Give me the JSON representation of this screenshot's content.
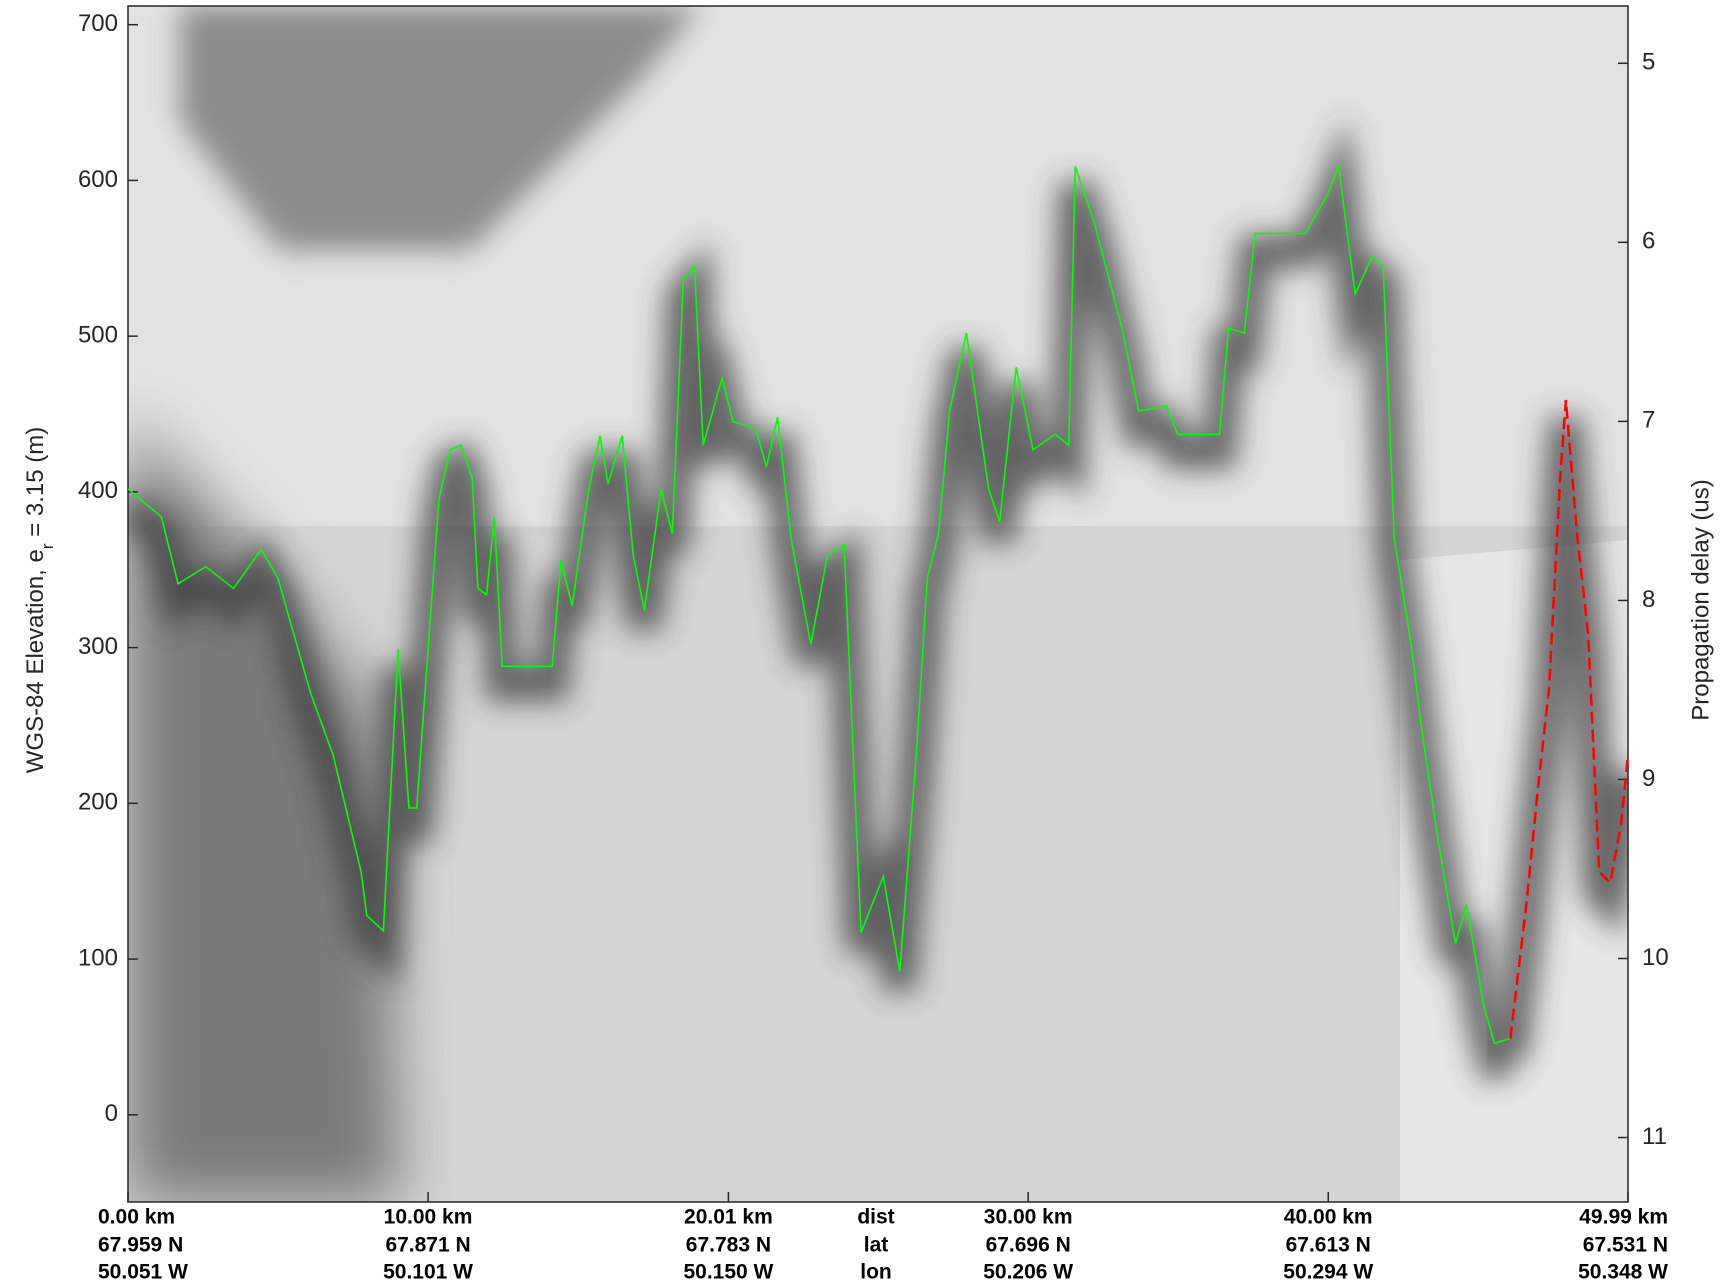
{
  "chart_data": {
    "type": "line",
    "ylabel": {
      "text": "WGS-84 Elevation, e",
      "subscript": "r",
      "suffix": " = 3.15 (m)"
    },
    "y2label": "Propagation delay (us)",
    "xlim": [
      0,
      49.99
    ],
    "ylim": [
      -56,
      712
    ],
    "yticks": [
      0,
      100,
      200,
      300,
      400,
      500,
      600,
      700
    ],
    "y2lim": [
      11.36,
      4.68
    ],
    "y2ticks": [
      5,
      6,
      7,
      8,
      9,
      10,
      11
    ],
    "xticks": [
      {
        "value": 0,
        "label": "0.00 km"
      },
      {
        "value": 10,
        "label": "10.00 km"
      },
      {
        "value": 20.01,
        "label": "20.01 km"
      },
      {
        "value": 30,
        "label": "30.00 km"
      },
      {
        "value": 40,
        "label": "40.00 km"
      },
      {
        "value": 49.99,
        "label": "49.99 km"
      }
    ],
    "lat_labels": [
      "67.959 N",
      "67.871 N",
      "67.783 N",
      "67.696 N",
      "67.613 N",
      "67.531 N"
    ],
    "lon_labels": [
      "50.051 W",
      "50.101 W",
      "50.150 W",
      "50.206 W",
      "50.294 W",
      "50.348 W"
    ],
    "row_labels": [
      "dist",
      "lat",
      "lon"
    ],
    "series": [
      {
        "color": "#00ff00",
        "linestyle": "solid",
        "x": [
          0,
          1.11,
          1.67,
          2.59,
          3.52,
          4.44,
          4.99,
          6.1,
          6.84,
          7.77,
          7.96,
          8.51,
          9.0,
          9.36,
          9.62,
          9.8,
          10.36,
          10.73,
          11.1,
          11.47,
          11.66,
          11.95,
          12.21,
          12.47,
          14.14,
          14.43,
          14.8,
          15.36,
          15.73,
          16.0,
          16.47,
          16.84,
          17.21,
          17.77,
          18.14,
          18.51,
          18.88,
          19.17,
          19.8,
          20.17,
          20.91,
          21.28,
          21.65,
          22.1,
          22.76,
          23.31,
          23.87,
          24.43,
          25.17,
          25.72,
          26.27,
          26.64,
          27.01,
          27.38,
          27.94,
          28.68,
          29.05,
          29.6,
          30.16,
          30.9,
          31.35,
          31.57,
          32.2,
          33.13,
          33.68,
          34.61,
          34.98,
          36.38,
          36.68,
          37.2,
          37.57,
          38.31,
          39.24,
          39.98,
          40.35,
          40.9,
          41.46,
          41.83,
          42.2,
          42.76,
          43.13,
          43.68,
          44.24,
          44.61,
          45.17,
          45.54,
          46.07
        ],
        "values": [
          402,
          384,
          341,
          352,
          338,
          363,
          345,
          270,
          231,
          156,
          128,
          118,
          299,
          197,
          197,
          245,
          395,
          427,
          430,
          409,
          338,
          334,
          384,
          288,
          288,
          356,
          327,
          402,
          436,
          405,
          436,
          359,
          324,
          402,
          373,
          537,
          545,
          430,
          473,
          445,
          441,
          416,
          448,
          370,
          302,
          359,
          366,
          117,
          153,
          92,
          231,
          345,
          373,
          452,
          502,
          402,
          381,
          480,
          427,
          437,
          430,
          609,
          573,
          505,
          452,
          455,
          437,
          437,
          505,
          502,
          566,
          566,
          566,
          591,
          609,
          527,
          551,
          545,
          370,
          302,
          245,
          174,
          110,
          135,
          71,
          46,
          49
        ]
      },
      {
        "color": "#ff0000",
        "linestyle": "dashed",
        "x": [
          46.07,
          46.62,
          46.99,
          47.36,
          47.73,
          47.92,
          48.29,
          48.66,
          49.03,
          49.4,
          49.77,
          49.99
        ],
        "values": [
          49,
          138,
          210,
          274,
          409,
          459,
          373,
          309,
          156,
          149,
          188,
          231
        ]
      }
    ]
  }
}
